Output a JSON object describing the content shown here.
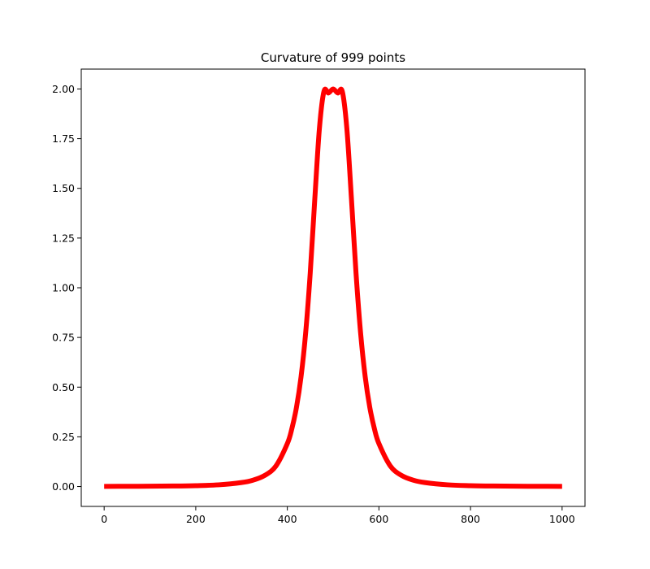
{
  "chart_data": {
    "type": "line",
    "title": "Curvature of 999 points",
    "xlabel": "",
    "ylabel": "",
    "xlim": [
      -50,
      1050
    ],
    "ylim": [
      -0.1,
      2.1
    ],
    "x_ticks": [
      0,
      200,
      400,
      600,
      800,
      1000
    ],
    "x_tick_labels": [
      "0",
      "200",
      "400",
      "600",
      "800",
      "1000"
    ],
    "y_ticks": [
      0.0,
      0.25,
      0.5,
      0.75,
      1.0,
      1.25,
      1.5,
      1.75,
      2.0
    ],
    "y_tick_labels": [
      "0.00",
      "0.25",
      "0.50",
      "0.75",
      "1.00",
      "1.25",
      "1.50",
      "1.75",
      "2.00"
    ],
    "grid": false,
    "series": [
      {
        "color": "#ff0000",
        "x": [
          0,
          50,
          100,
          150,
          200,
          250,
          300,
          325,
          350,
          375,
          400,
          410,
          420,
          430,
          440,
          450,
          460,
          470,
          480,
          490,
          500,
          510,
          520,
          530,
          540,
          550,
          560,
          570,
          580,
          590,
          600,
          625,
          650,
          675,
          700,
          750,
          800,
          850,
          900,
          950,
          1000
        ],
        "y": [
          0.0008,
          0.0011,
          0.0016,
          0.0025,
          0.0044,
          0.0086,
          0.02,
          0.032,
          0.055,
          0.103,
          0.216,
          0.292,
          0.399,
          0.553,
          0.772,
          1.074,
          1.447,
          1.8,
          1.988,
          1.98,
          2.0,
          1.98,
          1.988,
          1.8,
          1.447,
          1.074,
          0.772,
          0.553,
          0.399,
          0.292,
          0.216,
          0.103,
          0.055,
          0.032,
          0.02,
          0.0086,
          0.0044,
          0.0025,
          0.0016,
          0.0011,
          0.0008
        ]
      }
    ]
  }
}
